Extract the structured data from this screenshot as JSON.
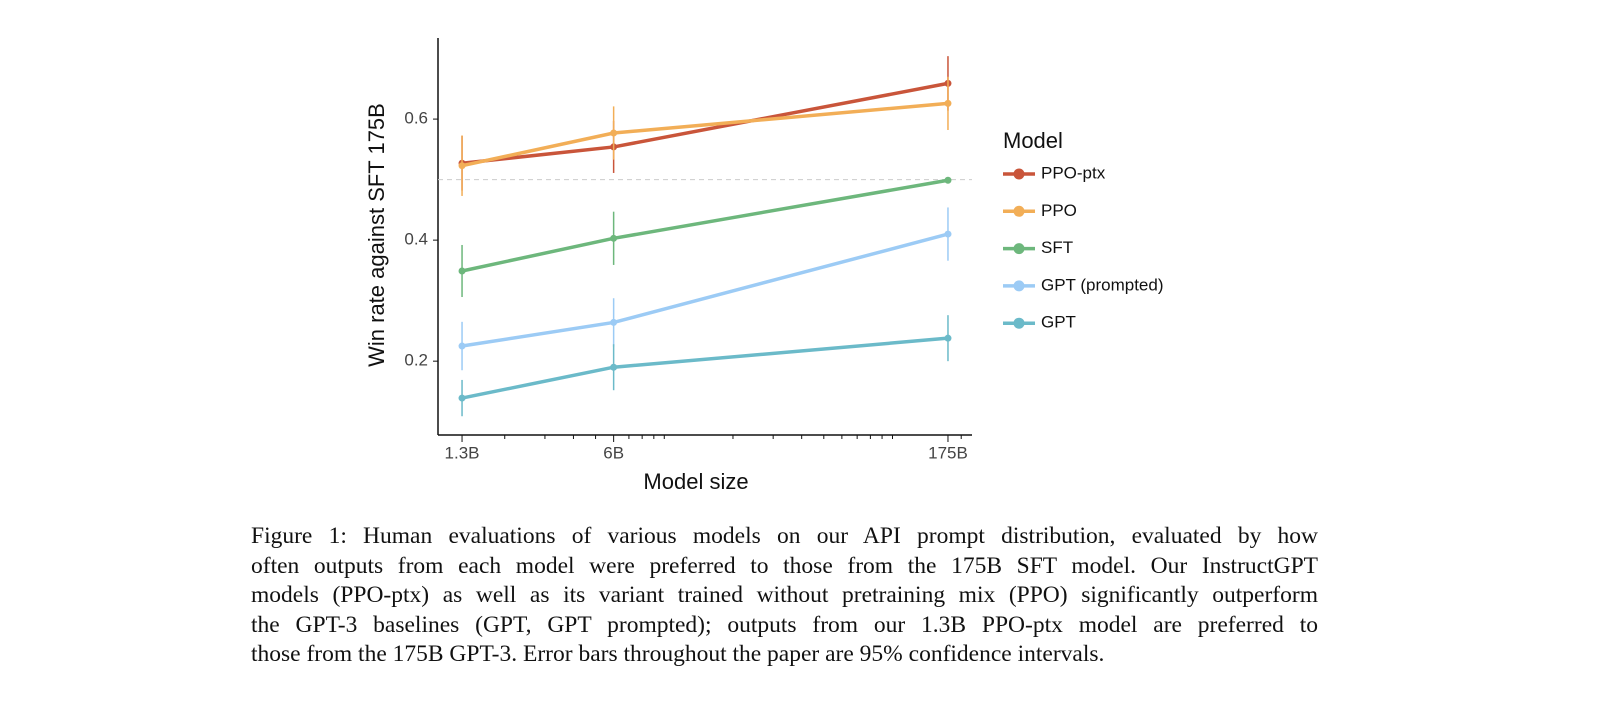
{
  "chart_data": {
    "type": "line",
    "y_label": "Win rate against SFT 175B",
    "x_label": "Model size",
    "legend_title": "Model",
    "legend": "right",
    "x_scale": "log",
    "x": [
      1.3,
      6,
      175
    ],
    "xlim": [
      1.02,
      223
    ],
    "xticks": [
      {
        "value": 1.3,
        "label": "1.3B"
      },
      {
        "value": 6,
        "label": "6B"
      },
      {
        "value": 175,
        "label": "175B"
      }
    ],
    "xminorticks": [
      2,
      3,
      4,
      5,
      7,
      8,
      9,
      10,
      20,
      30,
      40,
      50,
      60,
      70,
      80,
      90,
      100,
      200
    ],
    "ylim": [
      0.078,
      0.734
    ],
    "yticks": [
      0.2,
      0.4,
      0.6
    ],
    "hline": 0.5,
    "series": [
      {
        "name": "PPO-ptx",
        "color": "#c9553a",
        "values": [
          0.527,
          0.554,
          0.659
        ],
        "errors": [
          0.045,
          0.043,
          0.045
        ]
      },
      {
        "name": "PPO",
        "color": "#f2ae57",
        "values": [
          0.523,
          0.577,
          0.626
        ],
        "errors": [
          0.05,
          0.044,
          0.044
        ]
      },
      {
        "name": "SFT",
        "color": "#6db77c",
        "values": [
          0.349,
          0.403,
          0.499
        ],
        "errors": [
          0.043,
          0.044,
          0
        ]
      },
      {
        "name": "GPT (prompted)",
        "color": "#9ccbf5",
        "values": [
          0.225,
          0.264,
          0.41
        ],
        "errors": [
          0.04,
          0.04,
          0.044
        ]
      },
      {
        "name": "GPT",
        "color": "#6bbac9",
        "values": [
          0.139,
          0.19,
          0.238
        ],
        "errors": [
          0.03,
          0.038,
          0.038
        ]
      }
    ]
  },
  "caption": [
    "Figure 1: Human evaluations of various models on our API prompt distribution, evaluated by how",
    "often outputs from each model were preferred to those from the 175B SFT model. Our InstructGPT",
    "models (PPO-ptx) as well as its variant trained without pretraining mix (PPO) significantly outperform",
    "the GPT-3 baselines (GPT, GPT prompted); outputs from our 1.3B PPO-ptx model are preferred to",
    "those from the 175B GPT-3. Error bars throughout the paper are 95% confidence intervals."
  ]
}
